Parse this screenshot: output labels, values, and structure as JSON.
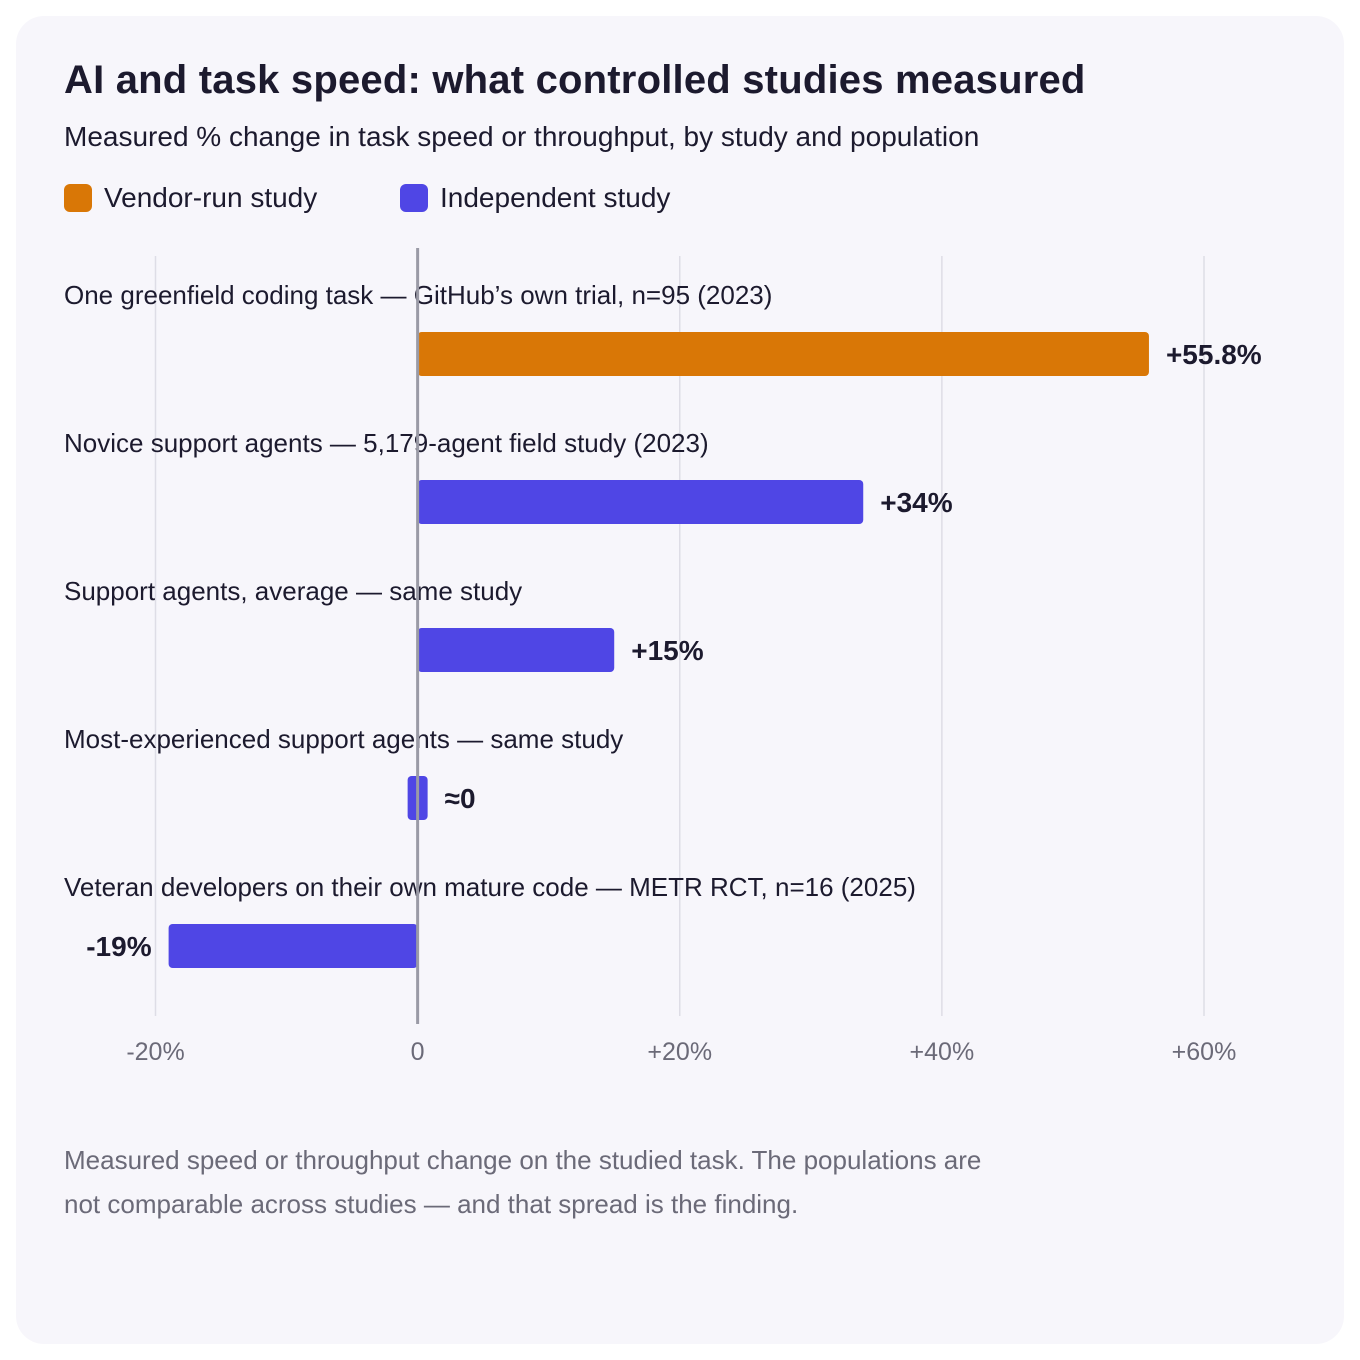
{
  "chart_data": {
    "type": "bar",
    "orientation": "horizontal",
    "title": "AI and task speed: what controlled studies measured",
    "subtitle": "Measured % change in task speed or throughput, by study and population",
    "legend": [
      {
        "name": "Vendor-run study",
        "color": "#d97706"
      },
      {
        "name": "Independent study",
        "color": "#4f46e5"
      }
    ],
    "legend_placement": "top-left",
    "categories": [
      "One greenfield coding task — GitHub’s own trial, n=95 (2023)",
      "Novice support agents — 5,179-agent field study (2023)",
      "Support agents, average — same study",
      "Most-experienced support agents — same study",
      "Veteran developers on their own mature code — METR RCT, n=16 (2025)"
    ],
    "values": [
      55.8,
      34,
      15,
      0,
      -19
    ],
    "value_labels": [
      "+55.8%",
      "+34%",
      "+15%",
      "≈0",
      "-19%"
    ],
    "study_type": [
      "Vendor-run study",
      "Independent study",
      "Independent study",
      "Independent study",
      "Independent study"
    ],
    "xlim": [
      -20,
      60
    ],
    "xticks": [
      -20,
      0,
      20,
      40,
      60
    ],
    "xtick_labels": [
      "-20%",
      "0",
      "+20%",
      "+40%",
      "+60%"
    ],
    "grid": true,
    "footnote": [
      "Measured speed or throughput change on the studied task. The populations are",
      "not comparable across studies — and that spread is the finding."
    ]
  }
}
